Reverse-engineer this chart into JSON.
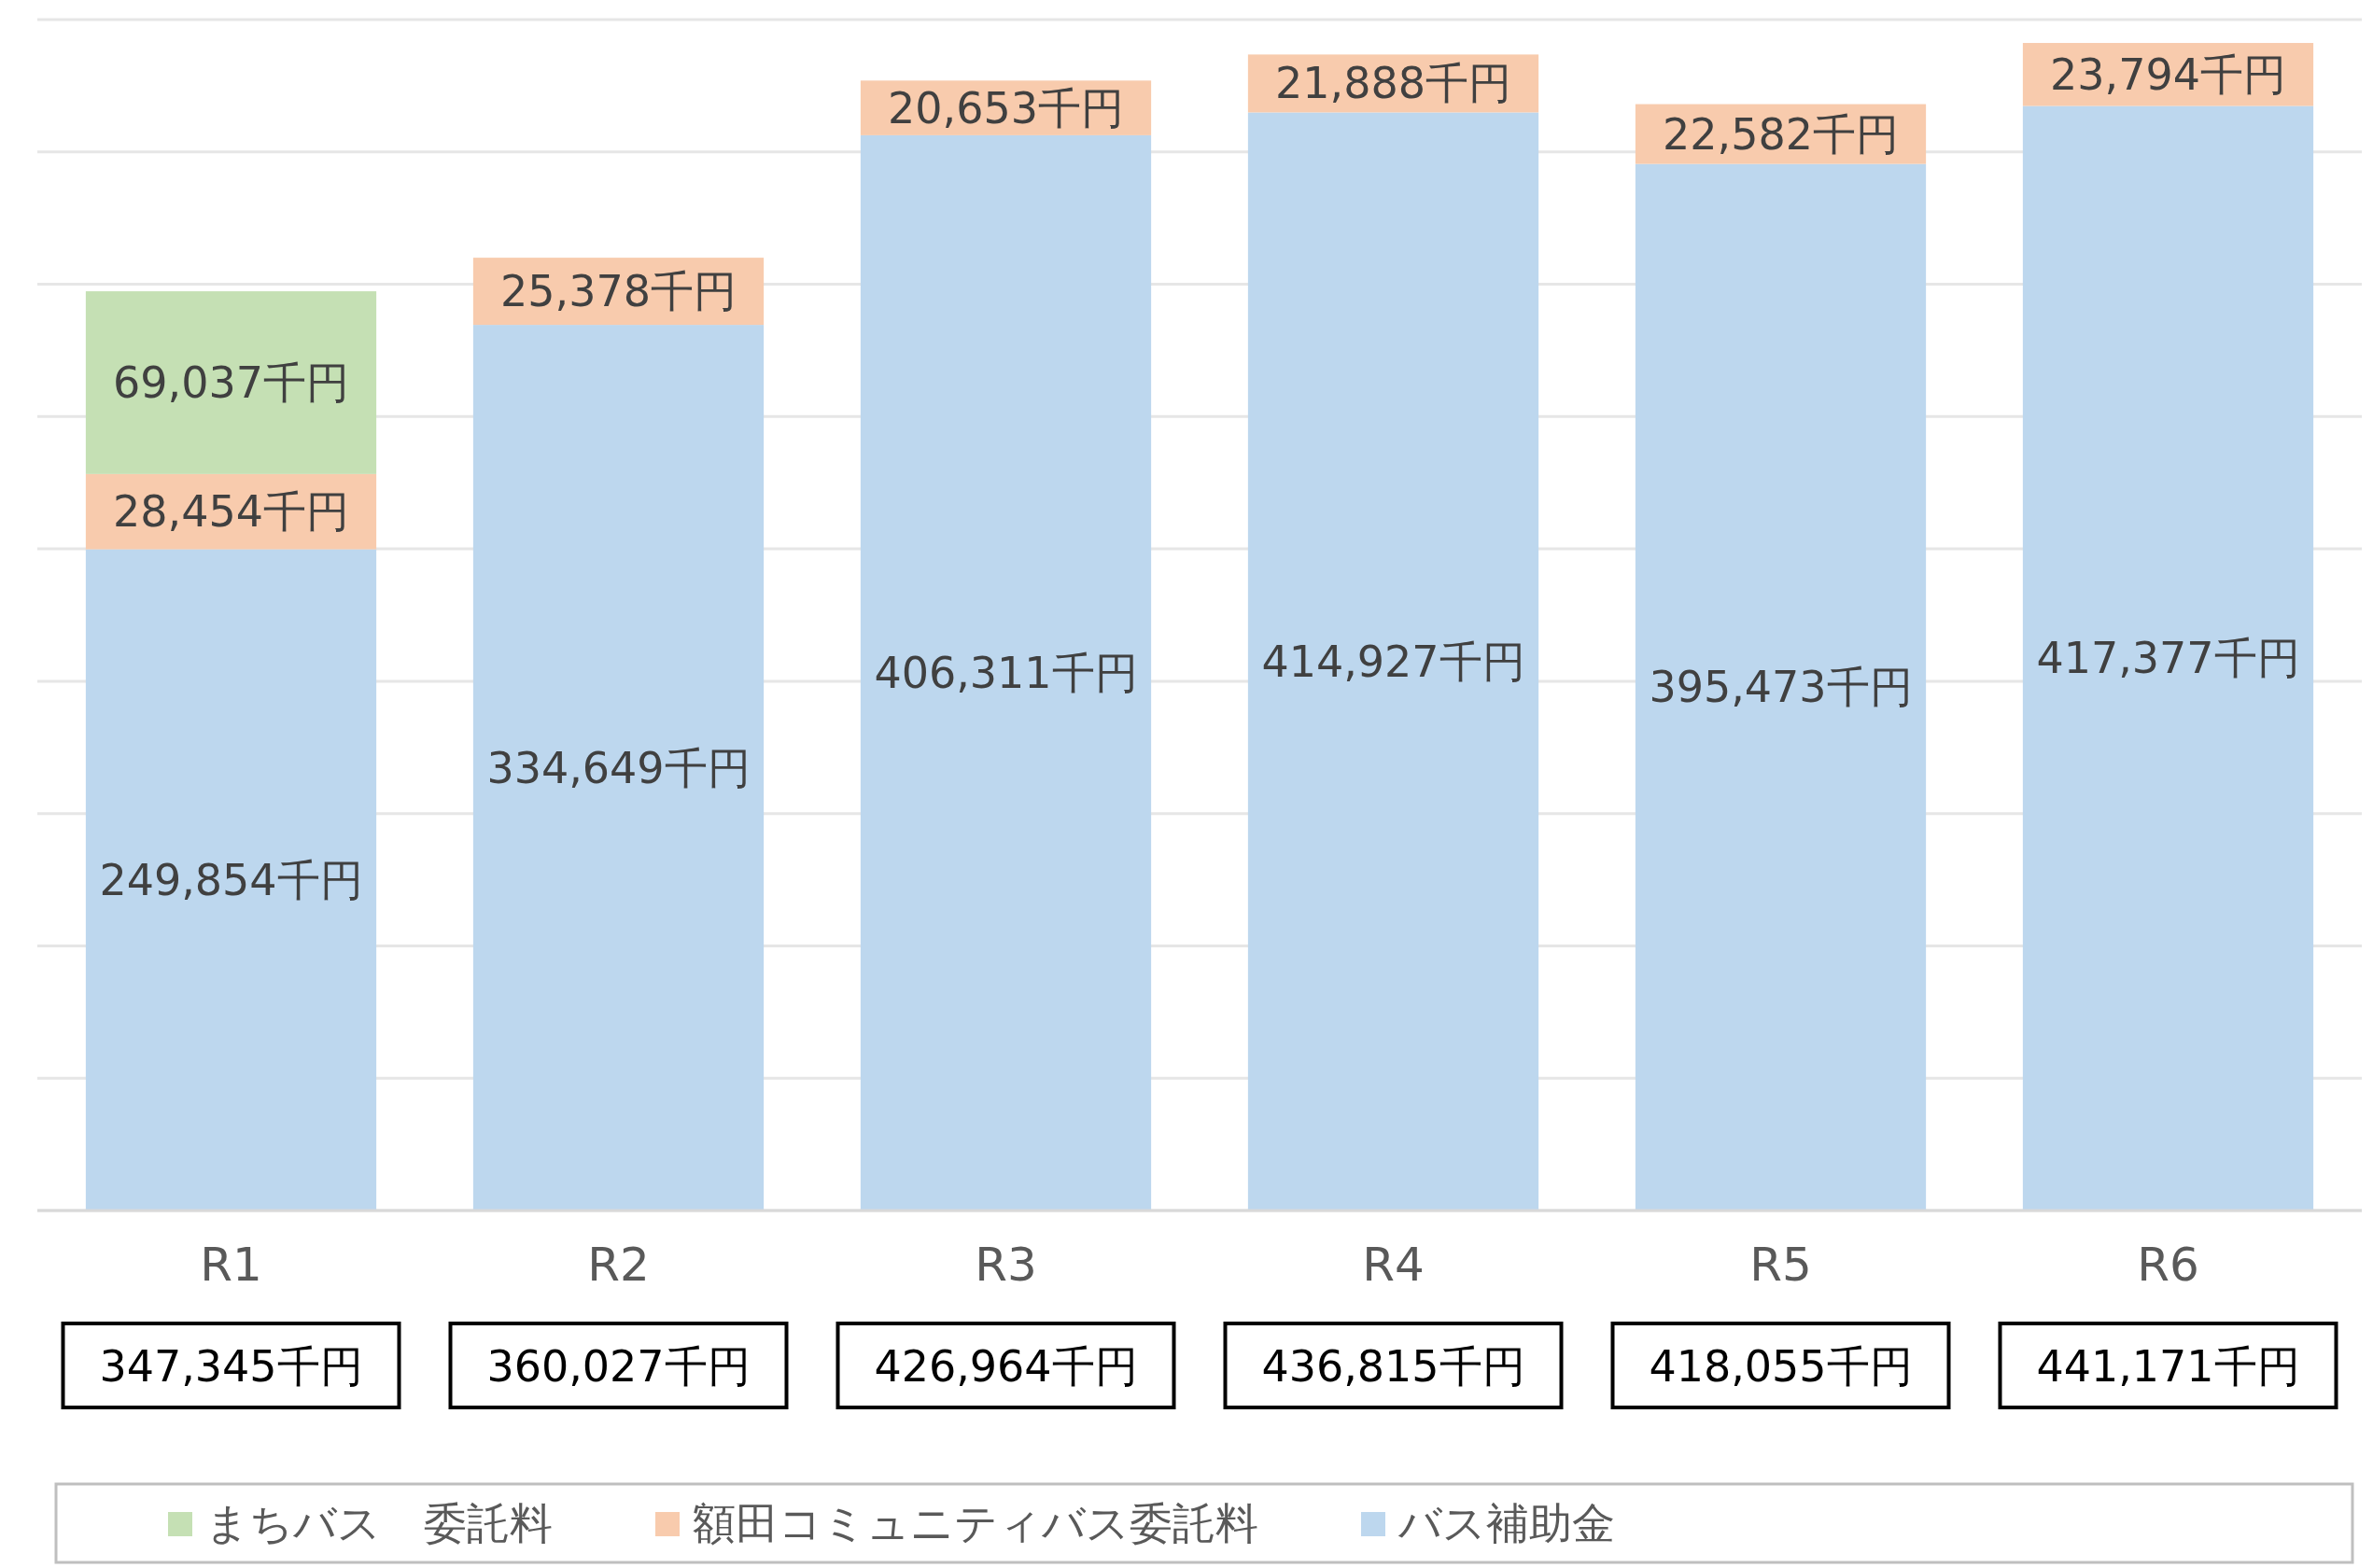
{
  "chart_data": {
    "type": "bar",
    "stacked": true,
    "categories": [
      "R1",
      "R2",
      "R3",
      "R4",
      "R5",
      "R6"
    ],
    "series": [
      {
        "name": "バス補助金",
        "color": "#bdd7ee",
        "values": [
          249854,
          334649,
          406311,
          414927,
          395473,
          417377
        ],
        "value_labels": [
          "249,854千円",
          "334,649千円",
          "406,311千円",
          "414,927千円",
          "395,473千円",
          "417,377千円"
        ]
      },
      {
        "name": "額田コミュニティバス委託料",
        "color": "#f8cbad",
        "values": [
          28454,
          25378,
          20653,
          21888,
          22582,
          23794
        ],
        "value_labels": [
          "28,454千円",
          "25,378千円",
          "20,653千円",
          "21,888千円",
          "22,582千円",
          "23,794千円"
        ]
      },
      {
        "name": "まちバス　委託料",
        "color": "#c5e0b4",
        "values": [
          69037,
          null,
          null,
          null,
          null,
          null
        ],
        "value_labels": [
          "69,037千円",
          null,
          null,
          null,
          null,
          null
        ]
      }
    ],
    "totals": [
      "347,345千円",
      "360,027千円",
      "426,964千円",
      "436,815千円",
      "418,055千円",
      "441,171千円"
    ],
    "ylim": [
      0,
      450000
    ],
    "yticks": [
      {
        "value": 0,
        "label": null
      },
      {
        "value": 50000,
        "label": null
      },
      {
        "value": 100000,
        "label": null
      },
      {
        "value": 150000,
        "label": null
      },
      {
        "value": 200000,
        "label": null
      },
      {
        "value": 250000,
        "label": null
      },
      {
        "value": 300000,
        "label": null
      },
      {
        "value": 350000,
        "label": null
      },
      {
        "value": 400000,
        "label": null
      },
      {
        "value": 450000,
        "label": null
      }
    ],
    "grid": "y",
    "tick_labels": "x",
    "legend": "bottom"
  }
}
